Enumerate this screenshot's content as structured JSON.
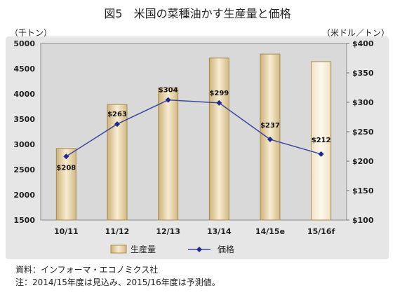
{
  "chart_data": {
    "type": "bar+line",
    "title": "図5　米国の菜種油かす生産量と価格",
    "ylabel_left": "（千トン）",
    "ylabel_right": "（米ドル／トン）",
    "categories": [
      "10/11",
      "11/12",
      "12/13",
      "13/14",
      "14/15e",
      "15/16f"
    ],
    "ylim_left": [
      1500,
      5000
    ],
    "yticks_left": [
      1500,
      2000,
      2500,
      3000,
      3500,
      4000,
      4500,
      5000
    ],
    "ylim_right": [
      100,
      400
    ],
    "yticks_right": [
      "$100",
      "$150",
      "$200",
      "$250",
      "$300",
      "$350",
      "$400"
    ],
    "yticks_right_values": [
      100,
      150,
      200,
      250,
      300,
      350,
      400
    ],
    "series": [
      {
        "name": "生産量",
        "kind": "bar",
        "values": [
          2920,
          3790,
          4120,
          4710,
          4790,
          4640
        ],
        "color": "#e9d8b2"
      },
      {
        "name": "価格",
        "kind": "line",
        "values": [
          208,
          263,
          304,
          299,
          237,
          212
        ],
        "labels": [
          "$208",
          "$263",
          "$304",
          "$299",
          "$237",
          "$212"
        ],
        "color": "#1f2a8c"
      }
    ],
    "legend_placement": "bottom",
    "grid": false
  },
  "notes": {
    "source": "資料：インフォーマ・エコノミクス社",
    "note": "注：2014/15年度は見込み、2015/16年度は予測値。"
  },
  "colors": {
    "plot_bg": "#d9d9d9",
    "frame_bg": "#e6e6e6",
    "bar_edge": "#a98c4e",
    "line": "#3c4a9e"
  }
}
